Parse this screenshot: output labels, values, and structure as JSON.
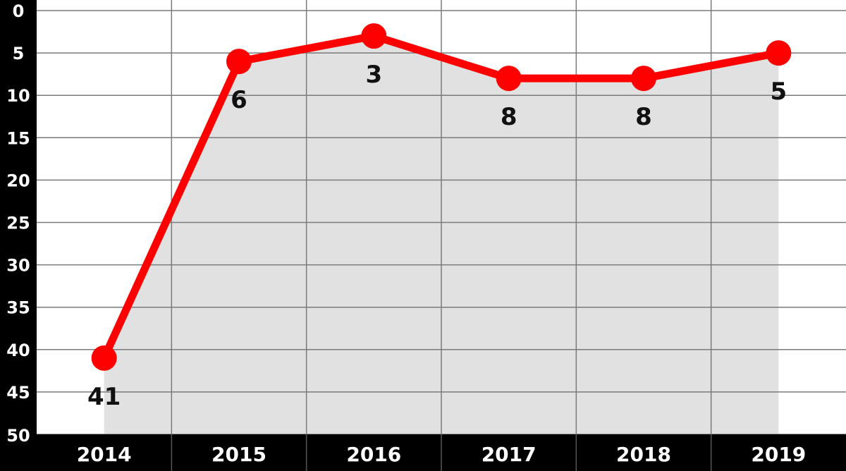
{
  "chart_data": {
    "type": "line",
    "title": "",
    "xlabel": "",
    "ylabel": "",
    "categories": [
      "2014",
      "2015",
      "2016",
      "2017",
      "2018",
      "2019"
    ],
    "series": [
      {
        "values": [
          41,
          6,
          3,
          8,
          8,
          5
        ]
      }
    ],
    "data_labels": [
      "41",
      "6",
      "3",
      "8",
      "8",
      "5"
    ],
    "y_axis": {
      "min": 0,
      "max": 50,
      "inverted": true,
      "ticks": [
        "0",
        "5",
        "10",
        "15",
        "20",
        "25",
        "30",
        "35",
        "40",
        "45",
        "50"
      ]
    },
    "grid": true,
    "area_fill": true,
    "colors": {
      "line": "#ff0000",
      "area": "#e1e1e1",
      "grid": "#7a7a7a",
      "axis_band": "#000000",
      "tick_text": "#ffffff",
      "label_text": "#111111"
    }
  }
}
